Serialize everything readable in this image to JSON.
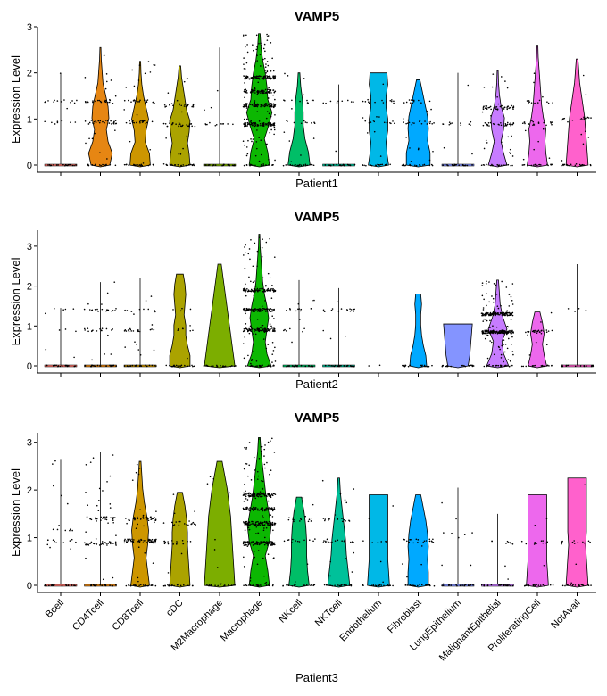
{
  "chart_data": [
    {
      "type": "violin",
      "title": "VAMP5",
      "xlabel": "Patient1",
      "ylabel": "Expression Level",
      "ylim": [
        0,
        3
      ],
      "yticks": [
        0,
        1,
        2,
        3
      ],
      "show_category_labels": false,
      "groups": [
        {
          "name": "Bcell",
          "color": "#F8766D",
          "max": 2.0,
          "shape": "spike",
          "density": [
            1,
            0.02,
            0,
            0,
            0,
            0,
            0,
            0,
            0,
            0
          ],
          "jitter_levels": [
            0.93,
            1.38
          ],
          "n_points": 22
        },
        {
          "name": "CD4Tcell",
          "color": "#E68613",
          "max": 2.55,
          "shape": "violin",
          "density": [
            0.55,
            0.7,
            0.45,
            0.35,
            0.5,
            0.45,
            0.3,
            0.15,
            0.1,
            0.05,
            0.03
          ],
          "jitter_levels": [
            0.93,
            1.38
          ],
          "n_points": 60
        },
        {
          "name": "CD8Tcell",
          "color": "#CD9600",
          "max": 2.25,
          "shape": "violin",
          "density": [
            0.6,
            0.55,
            0.3,
            0.35,
            0.5,
            0.35,
            0.2,
            0.1,
            0.05,
            0.03
          ],
          "jitter_levels": [
            0.93,
            1.38
          ],
          "n_points": 55
        },
        {
          "name": "cDC",
          "color": "#ABA300",
          "max": 2.15,
          "shape": "violin",
          "density": [
            0.6,
            0.55,
            0.45,
            0.55,
            0.6,
            0.4,
            0.3,
            0.2,
            0.1,
            0.05
          ],
          "jitter_levels": [
            0.88,
            1.3
          ],
          "n_points": 60
        },
        {
          "name": "M2Macrophage",
          "color": "#7CAE00",
          "max": 2.55,
          "shape": "spike",
          "density": [
            1,
            0.02,
            0,
            0,
            0,
            0,
            0,
            0,
            0,
            0
          ],
          "jitter_levels": [
            0.88
          ],
          "n_points": 14
        },
        {
          "name": "Macrophage",
          "color": "#0CB702",
          "max": 2.85,
          "shape": "violin",
          "density": [
            0.6,
            0.5,
            0.3,
            0.55,
            0.75,
            0.5,
            0.45,
            0.35,
            0.2,
            0.1,
            0.05
          ],
          "jitter_levels": [
            0.88,
            1.3,
            1.6,
            1.9
          ],
          "n_points": 420
        },
        {
          "name": "NKcell",
          "color": "#00BE67",
          "max": 2.0,
          "shape": "violin",
          "density": [
            0.65,
            0.55,
            0.35,
            0.25,
            0.25,
            0.2,
            0.1,
            0.05
          ],
          "jitter_levels": [
            0.93,
            1.38
          ],
          "n_points": 30
        },
        {
          "name": "NKTcell",
          "color": "#00C19A",
          "max": 1.75,
          "shape": "spike",
          "density": [
            1,
            0.02,
            0,
            0,
            0,
            0,
            0,
            0
          ],
          "jitter_levels": [
            1.38
          ],
          "n_points": 10
        },
        {
          "name": "Endothelium",
          "color": "#00B8E7",
          "max": 2.0,
          "shape": "violin",
          "density": [
            0.6,
            0.5,
            0.45,
            0.55,
            0.55,
            0.45,
            0.45,
            0.55,
            0.5
          ],
          "jitter_levels": [
            0.93,
            1.38
          ],
          "n_points": 35
        },
        {
          "name": "Fibroblast",
          "color": "#00A9FF",
          "max": 1.85,
          "shape": "violin",
          "density": [
            0.7,
            0.7,
            0.55,
            0.6,
            0.55,
            0.4,
            0.25,
            0.1
          ],
          "jitter_levels": [
            0.93,
            1.38
          ],
          "n_points": 40
        },
        {
          "name": "LungEpithelium",
          "color": "#8494FF",
          "max": 2.0,
          "shape": "spike",
          "density": [
            1,
            0.02,
            0,
            0,
            0,
            0,
            0,
            0,
            0
          ],
          "jitter_levels": [
            0.9
          ],
          "n_points": 14
        },
        {
          "name": "MalignantEpithelial",
          "color": "#C77CFF",
          "max": 2.05,
          "shape": "violin",
          "density": [
            0.55,
            0.35,
            0.2,
            0.35,
            0.4,
            0.2,
            0.1,
            0.05,
            0.03
          ],
          "jitter_levels": [
            0.88,
            1.25
          ],
          "n_points": 90
        },
        {
          "name": "ProliferatingCell",
          "color": "#ED68ED",
          "max": 2.6,
          "shape": "violin",
          "density": [
            0.6,
            0.5,
            0.45,
            0.5,
            0.35,
            0.25,
            0.2,
            0.15,
            0.1,
            0.05,
            0.03
          ],
          "jitter_levels": [
            0.9,
            1.38
          ],
          "n_points": 40
        },
        {
          "name": "NotAvail",
          "color": "#FF61CC",
          "max": 2.3,
          "shape": "violin",
          "density": [
            0.65,
            0.6,
            0.55,
            0.5,
            0.45,
            0.35,
            0.25,
            0.15,
            0.1,
            0.05
          ],
          "jitter_levels": [
            1.0
          ],
          "n_points": 25
        }
      ]
    },
    {
      "type": "violin",
      "title": "VAMP5",
      "xlabel": "Patient2",
      "ylabel": "Expression Level",
      "ylim": [
        0,
        3.4
      ],
      "yticks": [
        0,
        1,
        2,
        3
      ],
      "show_category_labels": false,
      "groups": [
        {
          "name": "Bcell",
          "color": "#F8766D",
          "max": 1.45,
          "shape": "spike",
          "density": [
            1,
            0.02,
            0,
            0,
            0,
            0
          ],
          "jitter_levels": [
            0.9,
            1.4
          ],
          "n_points": 10
        },
        {
          "name": "CD4Tcell",
          "color": "#E68613",
          "max": 2.1,
          "shape": "spike",
          "density": [
            1,
            0.02,
            0,
            0,
            0,
            0,
            0,
            0
          ],
          "jitter_levels": [
            0.9,
            1.4
          ],
          "n_points": 40
        },
        {
          "name": "CD8Tcell",
          "color": "#CD9600",
          "max": 2.2,
          "shape": "spike",
          "density": [
            1,
            0.02,
            0,
            0,
            0,
            0,
            0,
            0
          ],
          "jitter_levels": [
            0.9,
            1.4
          ],
          "n_points": 35
        },
        {
          "name": "cDC",
          "color": "#ABA300",
          "max": 2.3,
          "shape": "violin",
          "density": [
            0.6,
            0.6,
            0.45,
            0.35,
            0.35,
            0.25,
            0.3,
            0.35,
            0.3,
            0.2
          ],
          "jitter_levels": [
            0.9,
            1.4
          ],
          "n_points": 12
        },
        {
          "name": "M2Macrophage",
          "color": "#7CAE00",
          "max": 2.55,
          "shape": "violin",
          "density": [
            0.9,
            0.8,
            0.7,
            0.6,
            0.5,
            0.4,
            0.3,
            0.2,
            0.1
          ],
          "jitter_levels": [],
          "n_points": 0
        },
        {
          "name": "Macrophage",
          "color": "#0CB702",
          "max": 3.3,
          "shape": "violin",
          "density": [
            0.7,
            0.45,
            0.35,
            0.45,
            0.55,
            0.45,
            0.3,
            0.2,
            0.15,
            0.1,
            0.05,
            0.03
          ],
          "jitter_levels": [
            0.9,
            1.4,
            1.9
          ],
          "n_points": 300
        },
        {
          "name": "NKcell",
          "color": "#00BE67",
          "max": 2.15,
          "shape": "spike",
          "density": [
            1,
            0.02,
            0,
            0,
            0,
            0,
            0,
            0
          ],
          "jitter_levels": [
            0.9,
            1.4
          ],
          "n_points": 20
        },
        {
          "name": "NKTcell",
          "color": "#00C19A",
          "max": 1.95,
          "shape": "spike",
          "density": [
            1,
            0.02,
            0,
            0,
            0,
            0,
            0
          ],
          "jitter_levels": [
            1.4
          ],
          "n_points": 20
        },
        {
          "name": "Endothelium",
          "color": "#00B8E7",
          "max": 0.0,
          "shape": "none",
          "density": [],
          "jitter_levels": [],
          "n_points": 1
        },
        {
          "name": "Fibroblast",
          "color": "#00A9FF",
          "max": 1.8,
          "shape": "violin",
          "density": [
            0.5,
            0.45,
            0.3,
            0.2,
            0.15,
            0.15,
            0.2,
            0.15
          ],
          "jitter_levels": [],
          "n_points": 0
        },
        {
          "name": "LungEpithelium",
          "color": "#8494FF",
          "max": 1.05,
          "shape": "violin",
          "density": [
            0.6,
            0.7,
            0.75,
            0.8,
            0.85
          ],
          "jitter_levels": [],
          "n_points": 0
        },
        {
          "name": "MalignantEpithelial",
          "color": "#C77CFF",
          "max": 2.15,
          "shape": "violin",
          "density": [
            0.65,
            0.35,
            0.25,
            0.55,
            0.3,
            0.15,
            0.1,
            0.05
          ],
          "jitter_levels": [
            0.85,
            1.3
          ],
          "n_points": 330
        },
        {
          "name": "ProliferatingCell",
          "color": "#ED68ED",
          "max": 1.35,
          "shape": "violin",
          "density": [
            0.55,
            0.4,
            0.3,
            0.4,
            0.3,
            0.15
          ],
          "jitter_levels": [
            0.85
          ],
          "n_points": 30
        },
        {
          "name": "NotAvail",
          "color": "#FF61CC",
          "max": 2.55,
          "shape": "spike",
          "density": [
            1,
            0.02,
            0,
            0,
            0,
            0,
            0,
            0,
            0
          ],
          "jitter_levels": [
            1.4
          ],
          "n_points": 4
        }
      ]
    },
    {
      "type": "violin",
      "title": "VAMP5",
      "xlabel": "Patient3",
      "ylabel": "Expression Level",
      "ylim": [
        0,
        3.2
      ],
      "yticks": [
        0,
        1,
        2,
        3
      ],
      "show_category_labels": true,
      "groups": [
        {
          "name": "Bcell",
          "color": "#F8766D",
          "max": 2.65,
          "shape": "spike",
          "density": [
            1,
            0.02,
            0,
            0,
            0,
            0,
            0,
            0,
            0,
            0
          ],
          "jitter_levels": [
            0.93,
            1.15
          ],
          "n_points": 25
        },
        {
          "name": "CD4Tcell",
          "color": "#E68613",
          "max": 2.8,
          "shape": "spike",
          "density": [
            1,
            0.02,
            0,
            0,
            0,
            0,
            0,
            0,
            0,
            0
          ],
          "jitter_levels": [
            0.88,
            1.4
          ],
          "n_points": 80
        },
        {
          "name": "CD8Tcell",
          "color": "#CD9600",
          "max": 2.6,
          "shape": "violin",
          "density": [
            0.55,
            0.45,
            0.35,
            0.45,
            0.5,
            0.4,
            0.25,
            0.15,
            0.1,
            0.05
          ],
          "jitter_levels": [
            0.93,
            1.4
          ],
          "n_points": 110
        },
        {
          "name": "cDC",
          "color": "#ABA300",
          "max": 1.95,
          "shape": "violin",
          "density": [
            0.6,
            0.55,
            0.5,
            0.45,
            0.45,
            0.4,
            0.3,
            0.15
          ],
          "jitter_levels": [
            0.9,
            1.3
          ],
          "n_points": 40
        },
        {
          "name": "M2Macrophage",
          "color": "#7CAE00",
          "max": 2.6,
          "shape": "violin",
          "density": [
            0.9,
            0.85,
            0.8,
            0.75,
            0.7,
            0.65,
            0.55,
            0.45,
            0.3,
            0.15
          ],
          "jitter_levels": [],
          "n_points": 8
        },
        {
          "name": "Macrophage",
          "color": "#0CB702",
          "max": 3.1,
          "shape": "violin",
          "density": [
            0.6,
            0.5,
            0.35,
            0.6,
            0.7,
            0.55,
            0.4,
            0.3,
            0.2,
            0.1,
            0.05
          ],
          "jitter_levels": [
            0.88,
            1.3,
            1.6,
            1.9
          ],
          "n_points": 420
        },
        {
          "name": "NKcell",
          "color": "#00BE67",
          "max": 1.85,
          "shape": "violin",
          "density": [
            0.6,
            0.5,
            0.45,
            0.45,
            0.4,
            0.3,
            0.15
          ],
          "jitter_levels": [
            0.93,
            1.38
          ],
          "n_points": 30
        },
        {
          "name": "NKTcell",
          "color": "#00C19A",
          "max": 2.25,
          "shape": "violin",
          "density": [
            0.65,
            0.55,
            0.45,
            0.4,
            0.3,
            0.2,
            0.1,
            0.05
          ],
          "jitter_levels": [
            0.93,
            1.38
          ],
          "n_points": 45
        },
        {
          "name": "Endothelium",
          "color": "#00B8E7",
          "max": 1.9,
          "shape": "violin",
          "density": [
            0.65,
            0.6,
            0.55,
            0.55,
            0.55,
            0.55,
            0.55,
            0.55
          ],
          "jitter_levels": [
            0.93
          ],
          "n_points": 10
        },
        {
          "name": "Fibroblast",
          "color": "#00A9FF",
          "max": 1.9,
          "shape": "violin",
          "density": [
            0.6,
            0.6,
            0.55,
            0.6,
            0.55,
            0.45,
            0.3,
            0.15
          ],
          "jitter_levels": [
            0.93
          ],
          "n_points": 25
        },
        {
          "name": "LungEpithelium",
          "color": "#8494FF",
          "max": 2.05,
          "shape": "spike",
          "density": [
            1,
            0.02,
            0,
            0,
            0,
            0,
            0,
            0,
            0
          ],
          "jitter_levels": [
            1.1
          ],
          "n_points": 10
        },
        {
          "name": "MalignantEpithelial",
          "color": "#C77CFF",
          "max": 1.5,
          "shape": "spike",
          "density": [
            1,
            0.02,
            0,
            0,
            0,
            0
          ],
          "jitter_levels": [
            0.9
          ],
          "n_points": 10
        },
        {
          "name": "ProliferatingCell",
          "color": "#ED68ED",
          "max": 1.9,
          "shape": "violin",
          "density": [
            0.65,
            0.6,
            0.55,
            0.55,
            0.55,
            0.55,
            0.55,
            0.55
          ],
          "jitter_levels": [
            0.9
          ],
          "n_points": 15
        },
        {
          "name": "NotAvail",
          "color": "#FF61CC",
          "max": 2.25,
          "shape": "violin",
          "density": [
            0.65,
            0.6,
            0.55,
            0.5,
            0.55,
            0.55,
            0.55,
            0.55,
            0.55
          ],
          "jitter_levels": [
            0.9
          ],
          "n_points": 15
        }
      ]
    }
  ]
}
